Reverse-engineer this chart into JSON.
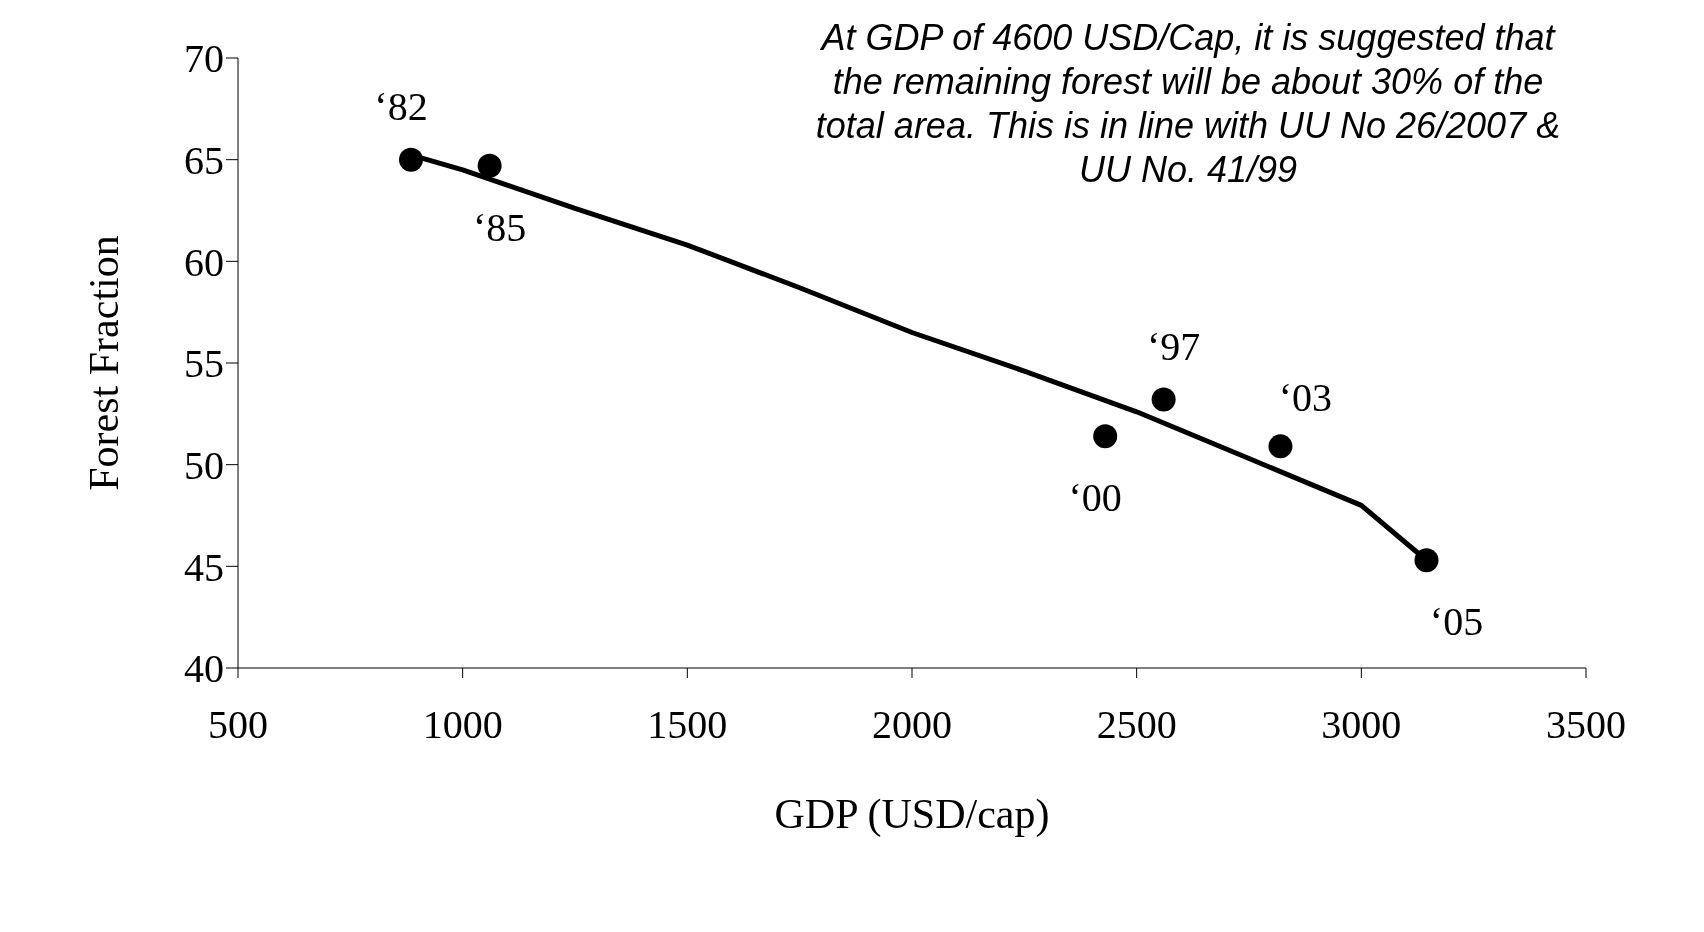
{
  "chart_data": {
    "type": "scatter",
    "xlabel": "GDP (USD/cap)",
    "ylabel": "Forest Fraction",
    "xlim": [
      500,
      3500
    ],
    "xticks": [
      500,
      1000,
      1500,
      2000,
      2500,
      3000,
      3500
    ],
    "ylim": [
      40,
      70
    ],
    "yticks": [
      40,
      45,
      50,
      55,
      60,
      65,
      70
    ],
    "grid": false,
    "marker": "circle",
    "series": [
      {
        "color": "#000000",
        "x": [
          885,
          1060,
          2430,
          2560,
          2820,
          3145
        ],
        "values": [
          65.0,
          64.7,
          51.4,
          53.2,
          50.9,
          45.3
        ]
      },
      {
        "type": "line",
        "color": "#000000",
        "line_style": "solid",
        "marker": "none",
        "x": [
          890,
          1000,
          1250,
          1500,
          1750,
          2000,
          2250,
          2500,
          2750,
          3000,
          3145
        ],
        "values": [
          65.2,
          64.5,
          62.6,
          60.8,
          58.7,
          56.5,
          54.6,
          52.6,
          50.3,
          48.0,
          45.3
        ]
      }
    ],
    "annotations": [
      "At GDP of 4600 USD/Cap, it is suggested that the remaining forest will be about 30% of the total area. This is in line with UU No 26/2007 & UU No. 41/99",
      {
        "text": "‘82",
        "x": 885,
        "y": 65.0
      },
      {
        "text": "‘85",
        "x": 1060,
        "y": 64.7
      },
      {
        "text": "‘00",
        "x": 2430,
        "y": 51.4
      },
      {
        "text": "‘97",
        "x": 2560,
        "y": 53.2
      },
      {
        "text": "‘03",
        "x": 2820,
        "y": 50.9
      },
      {
        "text": "‘05",
        "x": 3145,
        "y": 45.3
      }
    ]
  }
}
